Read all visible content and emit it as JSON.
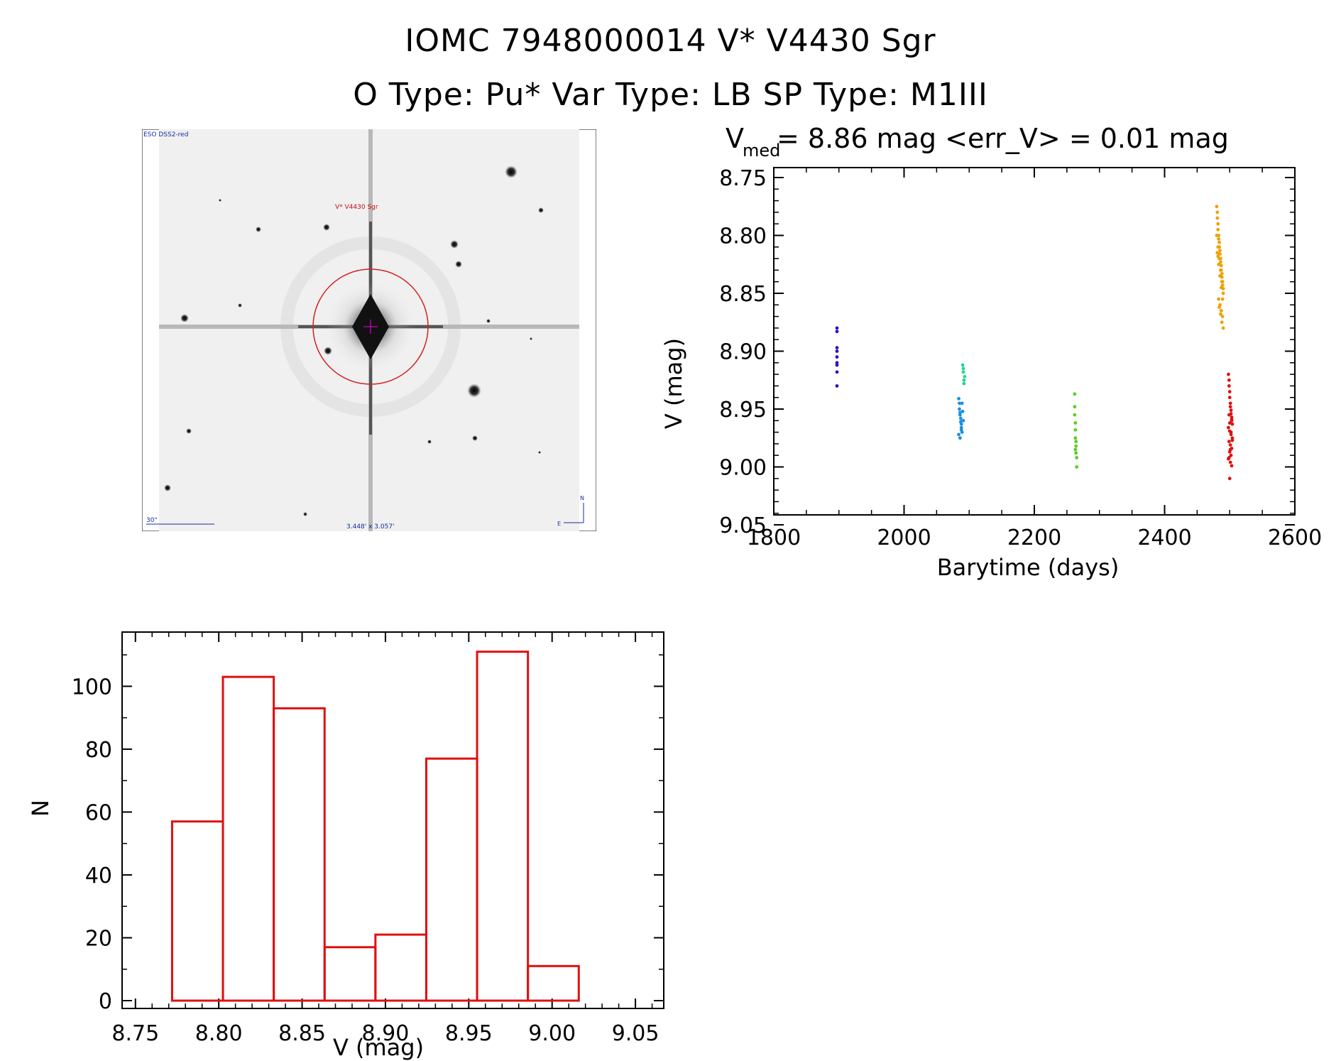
{
  "header": {
    "line1": "IOMC 7948000014    V* V4430 Sgr",
    "line2": "O Type: Pu*  Var Type: LB  SP Type: M1III"
  },
  "finder": {
    "survey_label": "ESO DSS2-red",
    "target_label": "V* V4430 Sgr",
    "scale_label": "30\"",
    "fov_label": "3.448' x 3.057'",
    "compass_n": "N",
    "compass_e": "E",
    "colors": {
      "circle": "#d42020",
      "cross": "#b000b0",
      "labels_blue": "#1030a0",
      "target_label_red": "#c01010"
    }
  },
  "chart_data": [
    {
      "type": "scatter",
      "title": "V_med = 8.86 mag <err_V> = 0.01 mag",
      "title_parts": {
        "prefix": "V",
        "subscript": "med",
        "rest": " = 8.86 mag <err_V> = 0.01 mag"
      },
      "xlabel": "Barytime (days)",
      "ylabel": "V (mag)",
      "xlim": [
        1800,
        2600
      ],
      "ylim": [
        9.05,
        8.75
      ],
      "y_inverted": true,
      "xticks": [
        "1800",
        "2000",
        "2200",
        "2400",
        "2600"
      ],
      "yticks": [
        "8.75",
        "8.80",
        "8.85",
        "8.90",
        "8.95",
        "9.00",
        "9.05"
      ],
      "grid": false,
      "series": [
        {
          "color": "#3010c8",
          "x": [
            1897,
            1897,
            1897,
            1897,
            1897,
            1897,
            1897,
            1897,
            1897
          ],
          "y": [
            8.88,
            8.883,
            8.897,
            8.9,
            8.905,
            8.91,
            8.912,
            8.918,
            8.93
          ]
        },
        {
          "color": "#1a8fe0",
          "x": [
            2084,
            2085,
            2085,
            2086,
            2086,
            2087,
            2087,
            2088,
            2088,
            2089,
            2089,
            2090,
            2091,
            2084,
            2086,
            2088
          ],
          "y": [
            8.941,
            8.945,
            8.95,
            8.953,
            8.955,
            8.958,
            8.961,
            8.963,
            8.966,
            8.97,
            8.945,
            8.952,
            8.96,
            8.972,
            8.975,
            8.968
          ]
        },
        {
          "color": "#20d890",
          "x": [
            2090,
            2091,
            2091,
            2092,
            2092,
            2093
          ],
          "y": [
            8.912,
            8.915,
            8.918,
            8.925,
            8.928,
            8.922
          ]
        },
        {
          "color": "#5ad020",
          "x": [
            2262,
            2262,
            2262,
            2263,
            2263,
            2263,
            2264,
            2264,
            2264,
            2265,
            2265,
            2263
          ],
          "y": [
            8.937,
            8.948,
            8.955,
            8.962,
            8.968,
            8.975,
            8.978,
            8.982,
            8.988,
            8.992,
            9.0,
            8.985
          ]
        },
        {
          "color": "#f0a000",
          "x": [
            2480,
            2481,
            2481,
            2482,
            2482,
            2483,
            2483,
            2484,
            2484,
            2485,
            2485,
            2486,
            2486,
            2487,
            2487,
            2488,
            2488,
            2489,
            2489,
            2490,
            2480,
            2482,
            2484,
            2486,
            2488,
            2490,
            2483,
            2485,
            2487,
            2489,
            2481,
            2483,
            2485,
            2487,
            2489,
            2484,
            2486,
            2488,
            2482,
            2490
          ],
          "y": [
            8.775,
            8.78,
            8.785,
            8.79,
            8.795,
            8.8,
            8.803,
            8.806,
            8.81,
            8.813,
            8.816,
            8.82,
            8.823,
            8.826,
            8.83,
            8.833,
            8.836,
            8.84,
            8.843,
            8.846,
            8.8,
            8.81,
            8.82,
            8.83,
            8.84,
            8.85,
            8.855,
            8.86,
            8.865,
            8.87,
            8.815,
            8.825,
            8.835,
            8.845,
            8.855,
            8.862,
            8.868,
            8.875,
            8.818,
            8.88
          ]
        },
        {
          "color": "#e01010",
          "x": [
            2498,
            2499,
            2499,
            2500,
            2500,
            2501,
            2501,
            2502,
            2502,
            2503,
            2503,
            2504,
            2498,
            2500,
            2502,
            2504,
            2499,
            2501,
            2503,
            2500,
            2502,
            2498,
            2501,
            2503,
            2499,
            2500,
            2502,
            2504,
            2501,
            2499,
            2503,
            2500
          ],
          "y": [
            8.92,
            8.925,
            8.93,
            8.935,
            8.94,
            8.945,
            8.948,
            8.951,
            8.954,
            8.957,
            8.96,
            8.963,
            8.966,
            8.969,
            8.972,
            8.975,
            8.978,
            8.981,
            8.984,
            8.987,
            8.99,
            8.993,
            8.996,
            8.999,
            8.955,
            8.962,
            8.97,
            8.977,
            8.985,
            8.992,
            8.959,
            9.01
          ]
        }
      ]
    },
    {
      "type": "bar",
      "subtype": "histogram",
      "xlabel": "V (mag)",
      "ylabel": "N",
      "xlim": [
        8.75,
        9.065
      ],
      "ylim": [
        0,
        115
      ],
      "xticks": [
        "8.75",
        "8.80",
        "8.85",
        "8.90",
        "8.95",
        "9.00",
        "9.05"
      ],
      "yticks": [
        "0",
        "20",
        "40",
        "60",
        "80",
        "100"
      ],
      "bin_edges": [
        8.772,
        8.8025,
        8.833,
        8.8635,
        8.894,
        8.9245,
        8.955,
        8.9855,
        9.016
      ],
      "values": [
        57,
        103,
        93,
        17,
        21,
        77,
        111,
        11
      ],
      "bar_color": "#e01010",
      "grid": false
    }
  ]
}
